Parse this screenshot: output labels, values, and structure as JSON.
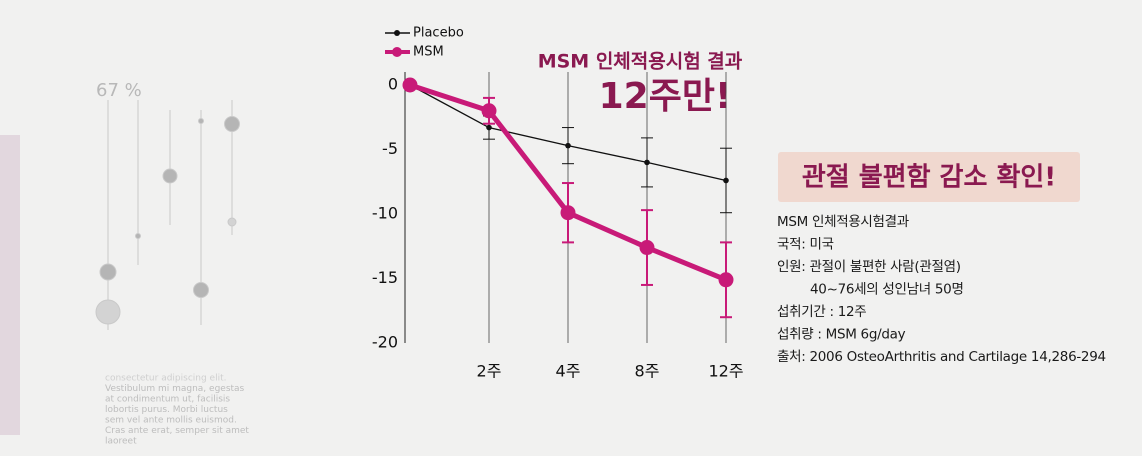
{
  "chart_data": {
    "type": "line",
    "title": "MSM 인체적용시험 결과",
    "subtitle": "12주만!",
    "categories": [
      null,
      "2주",
      "4주",
      "8주",
      "12주"
    ],
    "series": [
      {
        "name": "Placebo",
        "color": "#111111",
        "values": [
          0,
          -3.3,
          -4.7,
          -6.0,
          -7.4
        ],
        "errors": [
          null,
          0.9,
          1.4,
          1.9,
          2.5
        ]
      },
      {
        "name": "MSM",
        "color": "#c81a78",
        "values": [
          0,
          -2.0,
          -9.9,
          -12.6,
          -15.1
        ],
        "errors": [
          null,
          1.0,
          2.3,
          2.9,
          2.9
        ]
      }
    ],
    "ylim": [
      -20,
      0
    ],
    "yticks": [
      0,
      -5,
      -10,
      -15,
      -20
    ],
    "grid": false,
    "xgrid": true,
    "legend": "top-left"
  },
  "decor": {
    "percent": "67 %",
    "lorem": [
      "consectetur adipiscing elit.",
      "Vestibulum mi magna, egestas",
      "at condimentum ut, facilisis",
      "lobortis purus. Morbi luctus",
      "sem vel ante mollis euismod.",
      "Cras ante erat, semper sit amet",
      "laoreet"
    ]
  },
  "info": {
    "headline": "관절 불편함 감소 확인!",
    "lines": [
      "MSM 인체적용시험결과",
      "국적: 미국",
      "인원: 관절이 불편한 사람(관절염)",
      "40~76세의 성인남녀 50명",
      "섭취기간 : 12주",
      "섭취량 : MSM 6g/day",
      "출처: 2006 OsteoArthritis and Cartilage 14,286-294"
    ]
  }
}
